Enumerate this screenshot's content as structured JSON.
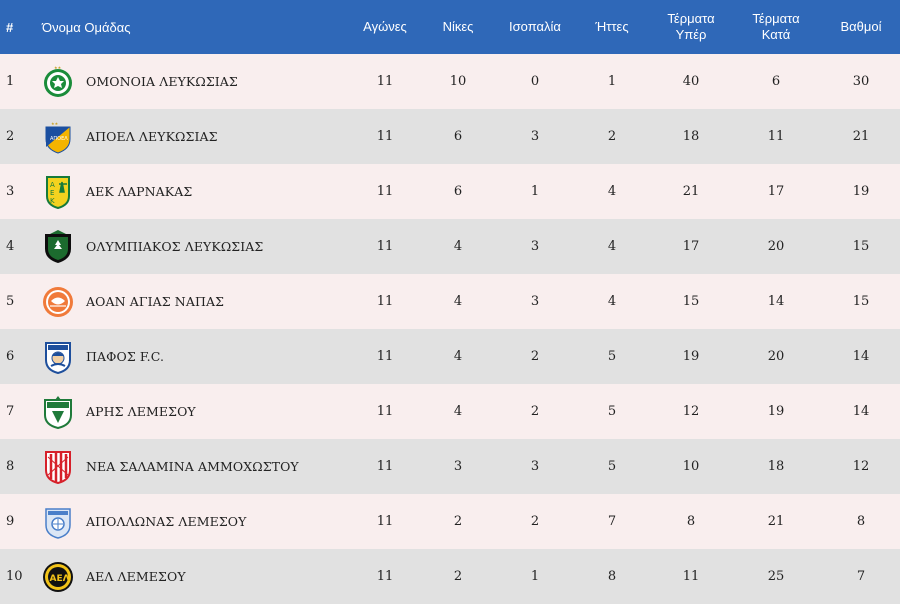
{
  "header": {
    "pos": "#",
    "team": "Όνομα Ομάδας",
    "played": "Αγώνες",
    "wins": "Νίκες",
    "draws": "Ισοπαλία",
    "losses": "Ήττες",
    "goals_for_1": "Τέρματα",
    "goals_for_2": "Υπέρ",
    "goals_against_1": "Τέρματα",
    "goals_against_2": "Κατά",
    "points": "Βαθμοί"
  },
  "rows": [
    {
      "pos": "1",
      "team": "ΟΜΟΝΟΙΑ ΛΕΥΚΩΣΙΑΣ",
      "logo": "omonoia-crest-icon",
      "played": "11",
      "wins": "10",
      "draws": "0",
      "losses": "1",
      "gf": "40",
      "ga": "6",
      "pts": "30"
    },
    {
      "pos": "2",
      "team": "ΑΠΟΕΛ ΛΕΥΚΩΣΙΑΣ",
      "logo": "apoel-crest-icon",
      "played": "11",
      "wins": "6",
      "draws": "3",
      "losses": "2",
      "gf": "18",
      "ga": "11",
      "pts": "21"
    },
    {
      "pos": "3",
      "team": "ΑΕΚ ΛΑΡΝΑΚΑΣ",
      "logo": "aek-crest-icon",
      "played": "11",
      "wins": "6",
      "draws": "1",
      "losses": "4",
      "gf": "21",
      "ga": "17",
      "pts": "19"
    },
    {
      "pos": "4",
      "team": "ΟΛΥΜΠΙΑΚΟΣ ΛΕΥΚΩΣΙΑΣ",
      "logo": "olympiakos-crest-icon",
      "played": "11",
      "wins": "4",
      "draws": "3",
      "losses": "4",
      "gf": "17",
      "ga": "20",
      "pts": "15"
    },
    {
      "pos": "5",
      "team": "ΑΟΑΝ ΑΓΙΑΣ ΝΑΠΑΣ",
      "logo": "aoan-crest-icon",
      "played": "11",
      "wins": "4",
      "draws": "3",
      "losses": "4",
      "gf": "15",
      "ga": "14",
      "pts": "15"
    },
    {
      "pos": "6",
      "team": "ΠΑΦΟΣ F.C.",
      "logo": "pafos-crest-icon",
      "played": "11",
      "wins": "4",
      "draws": "2",
      "losses": "5",
      "gf": "19",
      "ga": "20",
      "pts": "14"
    },
    {
      "pos": "7",
      "team": "ΑΡΗΣ ΛΕΜΕΣΟΥ",
      "logo": "aris-crest-icon",
      "played": "11",
      "wins": "4",
      "draws": "2",
      "losses": "5",
      "gf": "12",
      "ga": "19",
      "pts": "14"
    },
    {
      "pos": "8",
      "team": "ΝΕΑ ΣΑΛΑΜΙΝΑ ΑΜΜΟΧΩΣΤΟΥ",
      "logo": "nea-salamina-crest-icon",
      "played": "11",
      "wins": "3",
      "draws": "3",
      "losses": "5",
      "gf": "10",
      "ga": "18",
      "pts": "12"
    },
    {
      "pos": "9",
      "team": "ΑΠΟΛΛΩΝΑΣ ΛΕΜΕΣΟΥ",
      "logo": "apollon-crest-icon",
      "played": "11",
      "wins": "2",
      "draws": "2",
      "losses": "7",
      "gf": "8",
      "ga": "21",
      "pts": "8"
    },
    {
      "pos": "10",
      "team": "ΑΕΛ ΛΕΜΕΣΟΥ",
      "logo": "ael-crest-icon",
      "played": "11",
      "wins": "2",
      "draws": "1",
      "losses": "8",
      "gf": "11",
      "ga": "25",
      "pts": "7"
    }
  ],
  "colors": {
    "header_bg": "#2f68b8",
    "row_odd": "#f9eeee",
    "row_even": "#e1e1e1"
  }
}
